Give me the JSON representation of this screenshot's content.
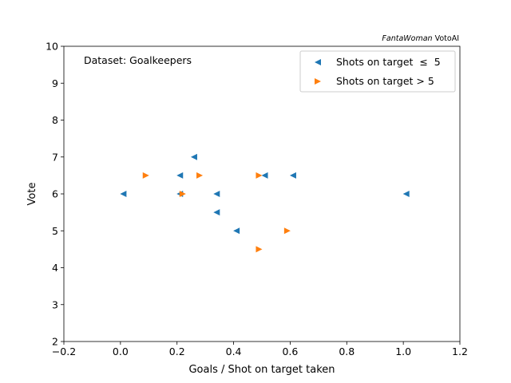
{
  "chart_data": {
    "type": "scatter",
    "credit_italic": "FantaWoman",
    "credit_rest": " VotoAI",
    "annotation": "Dataset: Goalkeepers",
    "xlabel": "Goals / Shot on target taken",
    "ylabel": "Vote",
    "xlim": [
      -0.2,
      1.2
    ],
    "ylim": [
      2,
      10
    ],
    "xticks": [
      -0.2,
      0.0,
      0.2,
      0.4,
      0.6,
      0.8,
      1.0,
      1.2
    ],
    "xtick_labels": [
      "−0.2",
      "0.0",
      "0.2",
      "0.4",
      "0.6",
      "0.8",
      "1.0",
      "1.2"
    ],
    "yticks": [
      2,
      3,
      4,
      5,
      6,
      7,
      8,
      9,
      10
    ],
    "ytick_labels": [
      "2",
      "3",
      "4",
      "5",
      "6",
      "7",
      "8",
      "9",
      "10"
    ],
    "grid": false,
    "legend_position": "top-right",
    "series": [
      {
        "name": "Shots on target  ≤  5",
        "marker": "triangle-left",
        "color": "#1f77b4",
        "points": [
          {
            "x": 0.26,
            "y": 7.0
          },
          {
            "x": 0.21,
            "y": 6.5
          },
          {
            "x": 0.51,
            "y": 6.5
          },
          {
            "x": 0.61,
            "y": 6.5
          },
          {
            "x": 0.01,
            "y": 6.0
          },
          {
            "x": 0.21,
            "y": 6.0
          },
          {
            "x": 0.34,
            "y": 6.0
          },
          {
            "x": 1.01,
            "y": 6.0
          },
          {
            "x": 0.34,
            "y": 5.5
          },
          {
            "x": 0.41,
            "y": 5.0
          }
        ]
      },
      {
        "name": "Shots on target > 5",
        "marker": "triangle-right",
        "color": "#ff7f0e",
        "points": [
          {
            "x": 0.09,
            "y": 6.5
          },
          {
            "x": 0.28,
            "y": 6.5
          },
          {
            "x": 0.49,
            "y": 6.5
          },
          {
            "x": 0.22,
            "y": 6.0
          },
          {
            "x": 0.59,
            "y": 5.0
          },
          {
            "x": 0.49,
            "y": 4.5
          }
        ]
      }
    ]
  }
}
